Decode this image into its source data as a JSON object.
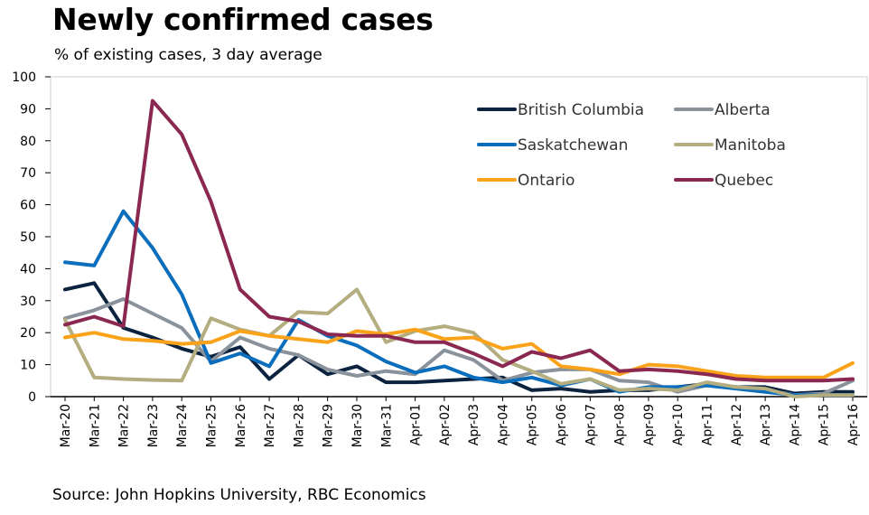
{
  "title": "Newly confirmed cases",
  "subtitle": "% of existing cases, 3 day average",
  "source": "Source: John Hopkins University, RBC Economics",
  "chart_data": {
    "type": "line",
    "title": "Newly confirmed cases",
    "subtitle": "% of existing cases, 3 day average",
    "xlabel": "",
    "ylabel": "",
    "ylim": [
      0,
      100
    ],
    "yticks": [
      "0",
      "10",
      "20",
      "30",
      "40",
      "50",
      "60",
      "70",
      "80",
      "90",
      "100"
    ],
    "grid": false,
    "legend_position": "top-right",
    "categories": [
      "Mar-20",
      "Mar-21",
      "Mar-22",
      "Mar-23",
      "Mar-24",
      "Mar-25",
      "Mar-26",
      "Mar-27",
      "Mar-28",
      "Mar-29",
      "Mar-30",
      "Mar-31",
      "Apr-01",
      "Apr-02",
      "Apr-03",
      "Apr-04",
      "Apr-05",
      "Apr-06",
      "Apr-07",
      "Apr-08",
      "Apr-09",
      "Apr-10",
      "Apr-11",
      "Apr-12",
      "Apr-13",
      "Apr-14",
      "Apr-15",
      "Apr-16"
    ],
    "series": [
      {
        "name": "British Columbia",
        "color": "#0c2340",
        "values": [
          33.5,
          35.5,
          21.5,
          18.5,
          15,
          12.5,
          15.5,
          5.5,
          13,
          7,
          9.5,
          4.5,
          4.5,
          5,
          5.5,
          6,
          2,
          2.5,
          1.5,
          2,
          2,
          3,
          4,
          3,
          3,
          1,
          1.5,
          1.5
        ]
      },
      {
        "name": "Alberta",
        "color": "#8a939c",
        "values": [
          24.5,
          27,
          30.5,
          26,
          21.5,
          11,
          18.5,
          15,
          13,
          8.5,
          6.5,
          8,
          7,
          14.5,
          11.5,
          5,
          7.5,
          8.5,
          8.5,
          5,
          4.5,
          1.5,
          3.5,
          3,
          2,
          0.5,
          1,
          5
        ]
      },
      {
        "name": "Saskatchewan",
        "color": "#0a6ebd",
        "values": [
          42,
          41,
          58,
          46.5,
          32,
          10.5,
          13.5,
          9.5,
          24,
          19,
          16,
          11,
          7.5,
          9.5,
          6,
          4.5,
          6,
          3.5,
          5.5,
          1.5,
          3,
          3,
          3.5,
          2.5,
          1.5,
          0.5,
          0.5,
          0.5
        ]
      },
      {
        "name": "Manitoba",
        "color": "#b4ad80",
        "values": [
          24,
          6,
          5.5,
          5.2,
          5,
          24.5,
          21,
          19,
          26.5,
          26,
          33.5,
          17,
          20.5,
          22,
          20,
          11.5,
          8,
          4,
          5.5,
          2,
          2.5,
          2,
          4.5,
          3,
          2.5,
          0,
          0.5,
          0.5
        ]
      },
      {
        "name": "Ontario",
        "color": "#fba21b",
        "values": [
          18.5,
          20,
          18,
          17.5,
          16.5,
          17,
          20.5,
          19,
          18,
          17,
          20.5,
          19.5,
          21,
          18,
          18.5,
          15,
          16.5,
          9.5,
          8.5,
          7,
          10,
          9.5,
          8,
          6.5,
          6,
          6,
          6,
          10.5
        ]
      },
      {
        "name": "Quebec",
        "color": "#8b2851",
        "values": [
          22.5,
          25,
          22,
          92.5,
          82,
          61,
          33.5,
          25,
          23.5,
          19.5,
          19,
          19,
          17,
          17,
          13.5,
          9.5,
          14,
          12,
          14.5,
          8,
          8.5,
          8,
          7,
          5.5,
          5,
          5,
          5,
          5.5
        ]
      }
    ]
  }
}
